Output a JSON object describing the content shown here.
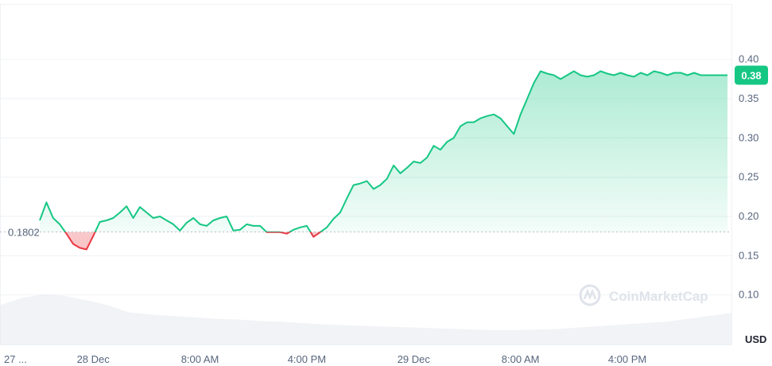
{
  "chart_data": {
    "type": "line",
    "currency_label": "USD",
    "baseline_value": 0.1802,
    "baseline_label": "0.1802",
    "current_price": 0.38,
    "current_price_label": "0.38",
    "ylim": [
      0.05,
      0.42
    ],
    "y_ticks": [
      {
        "value": 0.1,
        "label": "0.10"
      },
      {
        "value": 0.15,
        "label": "0.15"
      },
      {
        "value": 0.2,
        "label": "0.20"
      },
      {
        "value": 0.25,
        "label": "0.25"
      },
      {
        "value": 0.3,
        "label": "0.30"
      },
      {
        "value": 0.35,
        "label": "0.35"
      },
      {
        "value": 0.4,
        "label": "0.40"
      }
    ],
    "x_ticks": [
      {
        "value": 0.3,
        "label": "27 ..."
      },
      {
        "value": 4,
        "label": "28 Dec"
      },
      {
        "value": 12,
        "label": "8:00 AM"
      },
      {
        "value": 20,
        "label": "4:00 PM"
      },
      {
        "value": 28,
        "label": "29 Dec"
      },
      {
        "value": 36,
        "label": "8:00 AM"
      },
      {
        "value": 44,
        "label": "4:00 PM"
      }
    ],
    "xlim": [
      0,
      51.5
    ],
    "series": [
      {
        "x": [
          0.0,
          0.5,
          1.0,
          1.5,
          2.0,
          2.5,
          3.0,
          3.5,
          4.0,
          4.5,
          5.0,
          5.5,
          6.0,
          6.5,
          7.0,
          7.5,
          8.0,
          8.5,
          9.0,
          9.5,
          10.0,
          10.5,
          11.0,
          11.5,
          12.0,
          12.5,
          13.0,
          13.5,
          14.0,
          14.5,
          15.0,
          15.5,
          16.0,
          16.5,
          17.0,
          17.5,
          18.0,
          18.5,
          19.0,
          19.5,
          20.0,
          20.5,
          21.0,
          21.5,
          22.0,
          22.5,
          23.0,
          23.5,
          24.0,
          24.5,
          25.0,
          25.5,
          26.0,
          26.5,
          27.0,
          27.5,
          28.0,
          28.5,
          29.0,
          29.5,
          30.0,
          30.5,
          31.0,
          31.5,
          32.0,
          32.5,
          33.0,
          33.5,
          34.0,
          34.5,
          35.0,
          35.5,
          36.0,
          36.5,
          37.0,
          37.5,
          38.0,
          38.5,
          39.0,
          39.5,
          40.0,
          40.5,
          41.0,
          41.5,
          42.0,
          42.5,
          43.0,
          43.5,
          44.0,
          44.5,
          45.0,
          45.5,
          46.0,
          46.5,
          47.0,
          47.5,
          48.0,
          48.5,
          49.0,
          49.5,
          50.0,
          50.5,
          51.0,
          51.5
        ],
        "values": [
          0.195,
          0.218,
          0.198,
          0.19,
          0.178,
          0.165,
          0.16,
          0.158,
          0.175,
          0.193,
          0.195,
          0.198,
          0.205,
          0.213,
          0.198,
          0.212,
          0.205,
          0.198,
          0.2,
          0.195,
          0.19,
          0.182,
          0.192,
          0.198,
          0.19,
          0.188,
          0.195,
          0.198,
          0.2,
          0.182,
          0.183,
          0.19,
          0.188,
          0.188,
          0.18,
          0.18,
          0.18,
          0.178,
          0.183,
          0.186,
          0.188,
          0.174,
          0.18,
          0.186,
          0.197,
          0.205,
          0.223,
          0.24,
          0.242,
          0.245,
          0.235,
          0.24,
          0.248,
          0.265,
          0.255,
          0.262,
          0.27,
          0.268,
          0.275,
          0.29,
          0.285,
          0.295,
          0.3,
          0.315,
          0.32,
          0.32,
          0.325,
          0.328,
          0.33,
          0.325,
          0.315,
          0.305,
          0.33,
          0.35,
          0.37,
          0.385,
          0.382,
          0.38,
          0.375,
          0.38,
          0.385,
          0.38,
          0.378,
          0.38,
          0.385,
          0.382,
          0.38,
          0.383,
          0.38,
          0.378,
          0.383,
          0.38,
          0.385,
          0.383,
          0.38,
          0.383,
          0.383,
          0.38,
          0.383,
          0.38,
          0.38,
          0.38,
          0.38,
          0.38
        ]
      }
    ],
    "volume_series": [
      {
        "values": [
          0.55,
          0.65,
          0.7,
          0.68,
          0.62,
          0.55,
          0.45,
          0.42,
          0.4,
          0.38,
          0.36,
          0.35,
          0.33,
          0.32,
          0.3,
          0.28,
          0.27,
          0.26,
          0.25,
          0.24,
          0.23,
          0.22,
          0.21,
          0.2,
          0.2,
          0.21,
          0.22,
          0.24,
          0.26,
          0.28,
          0.3,
          0.32,
          0.36,
          0.4,
          0.44
        ]
      }
    ],
    "grid": true,
    "colors": {
      "up": "#16c784",
      "down": "#ea3943",
      "grid": "#eff2f5",
      "baseline": "#b9c1cc",
      "volume": "#e6e9ee"
    },
    "watermark": "CoinMarketCap"
  }
}
